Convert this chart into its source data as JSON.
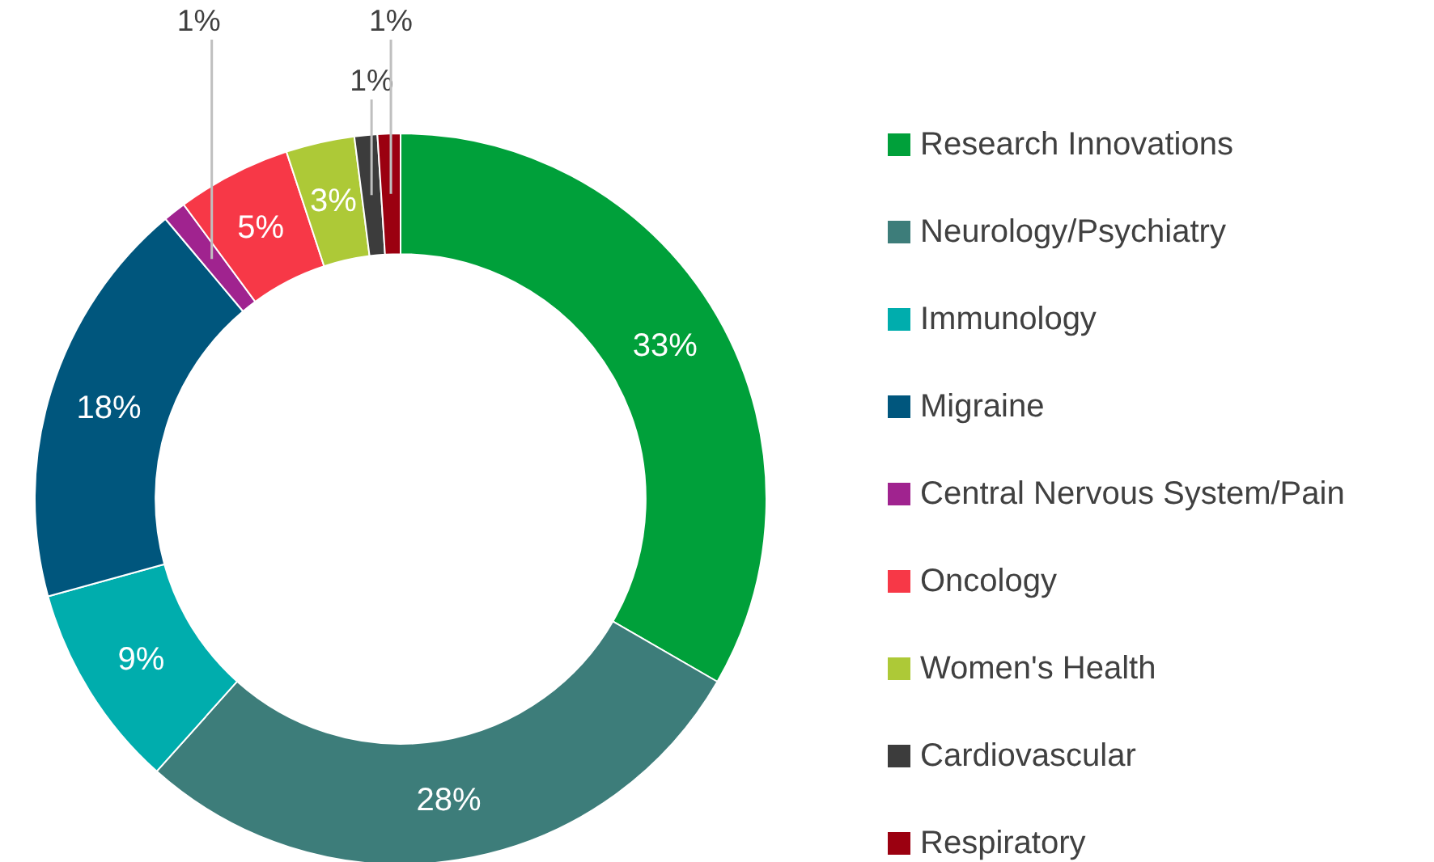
{
  "chart_data": {
    "type": "donut",
    "categories": [
      "Research Innovations",
      "Neurology/Psychiatry",
      "Immunology",
      "Migraine",
      "Central Nervous System/Pain",
      "Oncology",
      "Women's Health",
      "Cardiovascular",
      "Respiratory"
    ],
    "values": [
      33,
      28,
      9,
      18,
      1,
      5,
      3,
      1,
      1
    ],
    "colors": [
      "#00a03a",
      "#3d7d7a",
      "#00adad",
      "#00567d",
      "#a0238f",
      "#f73847",
      "#adc937",
      "#3c3c3c",
      "#9b0010"
    ],
    "value_labels": [
      "33%",
      "28%",
      "9%",
      "18%",
      "1%",
      "5%",
      "3%",
      "1%",
      "1%"
    ],
    "legend": "right"
  }
}
